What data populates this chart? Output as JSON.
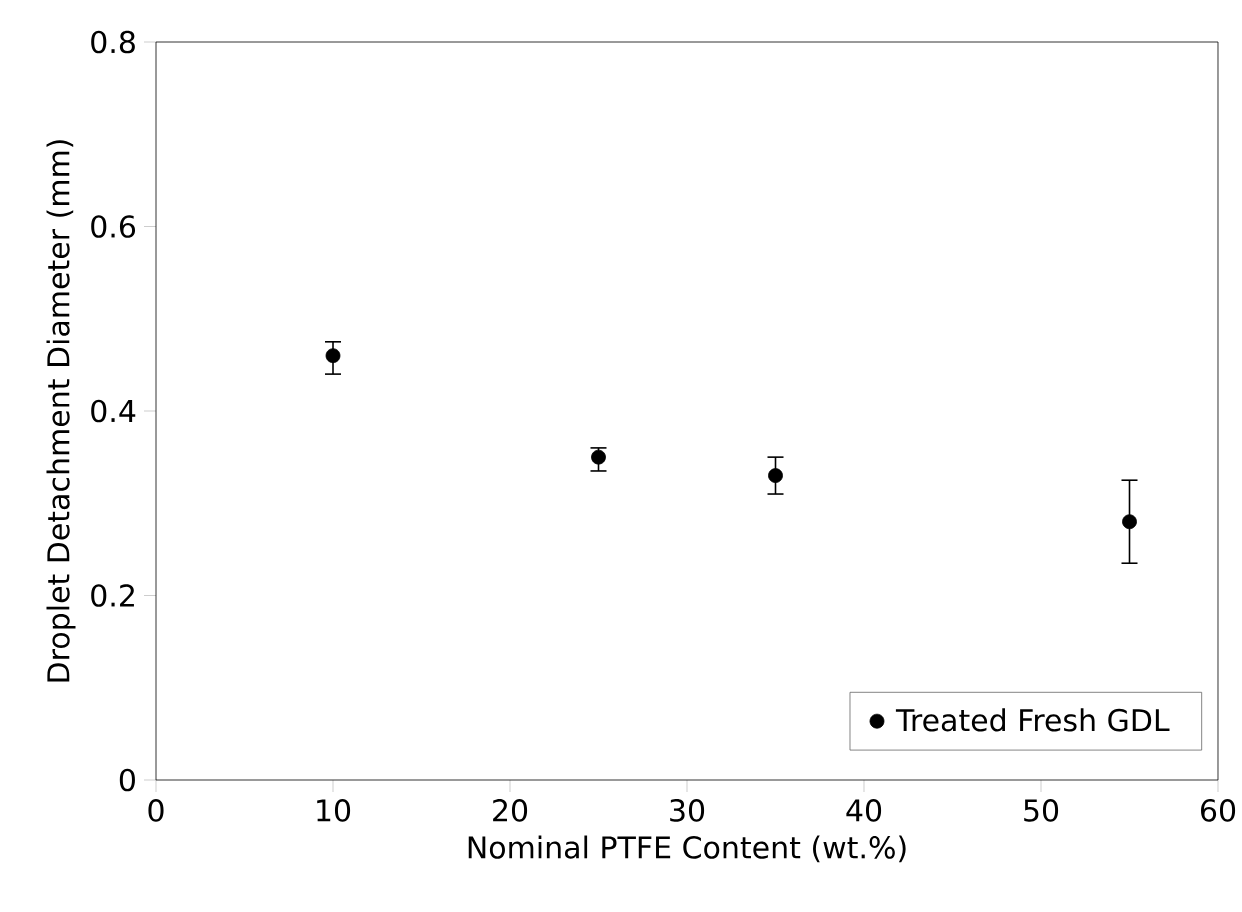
{
  "chart_data": {
    "type": "scatter",
    "xlabel": "Nominal PTFE Content (wt.%)",
    "ylabel": "Droplet Detachment Diameter (mm)",
    "x": [
      10,
      25,
      35,
      55
    ],
    "series": [
      {
        "name": "Treated Fresh GDL",
        "color": "#000000",
        "values": [
          0.46,
          0.35,
          0.33,
          0.28
        ],
        "errors": [
          [
            0.44,
            0.475
          ],
          [
            0.335,
            0.36
          ],
          [
            0.31,
            0.35
          ],
          [
            0.235,
            0.325
          ]
        ]
      }
    ],
    "xlim": [
      0,
      60
    ],
    "ylim": [
      0,
      0.8
    ],
    "xticks": [
      0,
      10,
      20,
      30,
      40,
      50,
      60
    ],
    "yticks": [
      0,
      0.2,
      0.4,
      0.6,
      0.8
    ],
    "marker": "circle",
    "legend": "bottom right",
    "grid": false
  }
}
